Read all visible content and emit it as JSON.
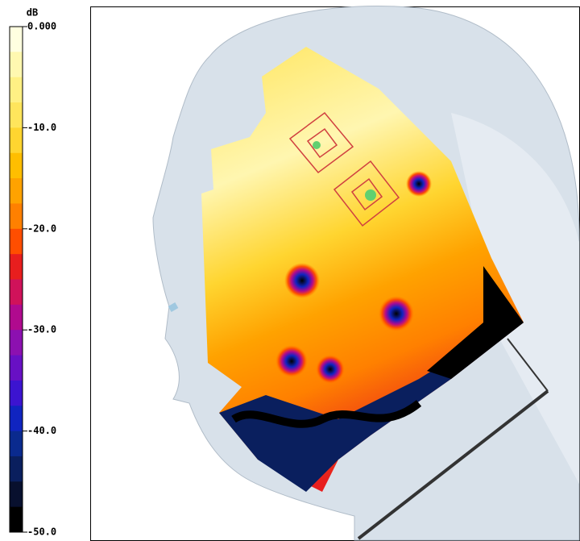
{
  "colorbar": {
    "unit": "dB",
    "lim": [
      -50,
      0
    ],
    "ticks": [
      {
        "value": 0,
        "label": "0.000"
      },
      {
        "value": -10,
        "label": "-10.0"
      },
      {
        "value": -20,
        "label": "-20.0"
      },
      {
        "value": -30,
        "label": "-30.0"
      },
      {
        "value": -40,
        "label": "-40.0"
      },
      {
        "value": -50,
        "label": "-50.0"
      }
    ],
    "colors": [
      "#ffffe0",
      "#fff8b0",
      "#fff084",
      "#ffe55c",
      "#ffd530",
      "#ffbe00",
      "#ffa200",
      "#ff8000",
      "#ff4e00",
      "#e81e1e",
      "#d0125a",
      "#b00a8e",
      "#8c10b0",
      "#6810c4",
      "#3c14d0",
      "#1024c0",
      "#0a2a8e",
      "#0a1f5e",
      "#08102e",
      "#000000"
    ]
  }
}
